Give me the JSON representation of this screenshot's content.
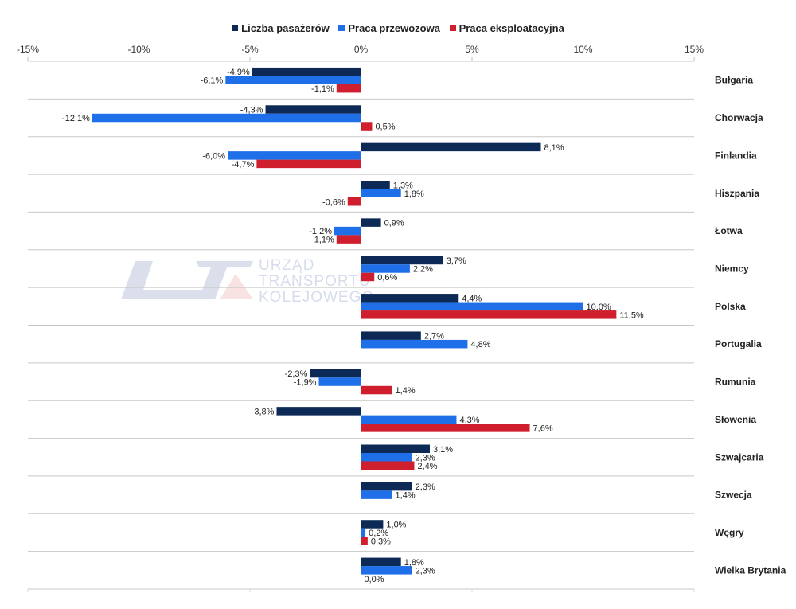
{
  "legend": [
    {
      "label": "Liczba pasażerów",
      "color": "#0d2a57"
    },
    {
      "label": "Praca przewozowa",
      "color": "#1f6fe8"
    },
    {
      "label": "Praca eksploatacyjna",
      "color": "#cf1f2e"
    }
  ],
  "watermark": {
    "line1": "URZĄD",
    "line2": "TRANSPORTU",
    "line3": "KOLEJOWEGO"
  },
  "chart_data": {
    "type": "bar",
    "orientation": "horizontal",
    "xlim": [
      -15,
      15
    ],
    "xticks": [
      -15,
      -10,
      -5,
      0,
      5,
      10,
      15
    ],
    "xtick_labels": [
      "-15%",
      "-10%",
      "-5%",
      "0%",
      "5%",
      "10%",
      "15%"
    ],
    "legend_position": "top-center",
    "categories": [
      "Bułgaria",
      "Chorwacja",
      "Finlandia",
      "Hiszpania",
      "Łotwa",
      "Niemcy",
      "Polska",
      "Portugalia",
      "Rumunia",
      "Słowenia",
      "Szwajcaria",
      "Szwecja",
      "Węgry",
      "Wielka Brytania"
    ],
    "series": [
      {
        "name": "Liczba pasażerów",
        "values": [
          -4.9,
          -4.3,
          8.1,
          1.3,
          0.9,
          3.7,
          4.4,
          2.7,
          -2.3,
          -3.8,
          3.1,
          2.3,
          1.0,
          1.8
        ],
        "labels": [
          "-4,9%",
          "-4,3%",
          "8,1%",
          "1,3%",
          "0,9%",
          "3,7%",
          "4,4%",
          "2,7%",
          "-2,3%",
          "-3,8%",
          "3,1%",
          "2,3%",
          "1,0%",
          "1,8%"
        ]
      },
      {
        "name": "Praca przewozowa",
        "values": [
          -6.1,
          -12.1,
          -6.0,
          1.8,
          -1.2,
          2.2,
          10.0,
          4.8,
          -1.9,
          4.3,
          2.3,
          1.4,
          0.2,
          2.3
        ],
        "labels": [
          "-6,1%",
          "-12,1%",
          "-6,0%",
          "1,8%",
          "-1,2%",
          "2,2%",
          "10,0%",
          "4,8%",
          "-1,9%",
          "4,3%",
          "2,3%",
          "1,4%",
          "0,2%",
          "2,3%"
        ]
      },
      {
        "name": "Praca eksploatacyjna",
        "values": [
          -1.1,
          0.5,
          -4.7,
          -0.6,
          -1.1,
          0.6,
          11.5,
          null,
          1.4,
          7.6,
          2.4,
          null,
          0.3,
          0.0
        ],
        "labels": [
          "-1,1%",
          "0,5%",
          "-4,7%",
          "-0,6%",
          "-1,1%",
          "0,6%",
          "11,5%",
          null,
          "1,4%",
          "7,6%",
          "2,4%",
          null,
          "0,3%",
          "0,0%"
        ]
      }
    ]
  }
}
